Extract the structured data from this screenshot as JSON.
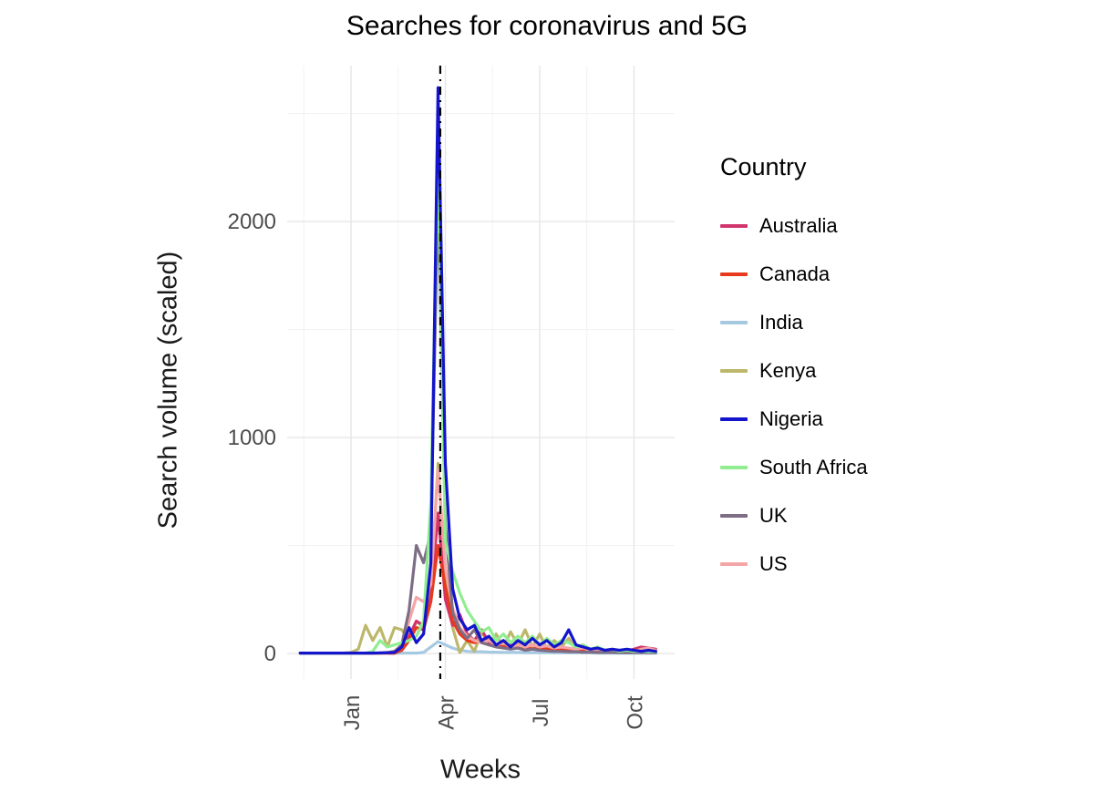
{
  "chart_data": {
    "type": "line",
    "title": "Searches for coronavirus and 5G",
    "xlabel": "Weeks",
    "ylabel": "Search volume (scaled)",
    "legend_title": "Country",
    "legend_position": "right",
    "grid": true,
    "x_unit": "weeks_from_jan_1_2020",
    "xlim": [
      -8.8,
      44.6
    ],
    "ylim": [
      -118,
      2722
    ],
    "x_ticks": [
      {
        "value": 0,
        "label": "Jan"
      },
      {
        "value": 13,
        "label": "Apr"
      },
      {
        "value": 26,
        "label": "Jul"
      },
      {
        "value": 39,
        "label": "Oct"
      }
    ],
    "x_minor_ticks": [
      -6.5,
      6.5,
      19.5,
      32.5
    ],
    "y_ticks": [
      {
        "value": 0,
        "label": "0"
      },
      {
        "value": 1000,
        "label": "1000"
      },
      {
        "value": 2000,
        "label": "2000"
      }
    ],
    "y_minor_ticks": [
      500,
      1500,
      2500
    ],
    "vline": {
      "x": 12.3,
      "style": "dashdot",
      "color": "#000000"
    },
    "x": [
      -7,
      -6,
      -5,
      -4,
      -3,
      -2,
      -1,
      0,
      1,
      2,
      3,
      4,
      5,
      6,
      7,
      8,
      9,
      10,
      11,
      12,
      13,
      14,
      15,
      16,
      17,
      18,
      19,
      20,
      21,
      22,
      23,
      24,
      25,
      26,
      27,
      28,
      29,
      30,
      31,
      32,
      33,
      34,
      35,
      36,
      37,
      38,
      39,
      40,
      41,
      42
    ],
    "series": [
      {
        "name": "Australia",
        "color": "#D0366B",
        "values": [
          2,
          2,
          2,
          2,
          2,
          2,
          2,
          2,
          2,
          2,
          2,
          2,
          2,
          2,
          20,
          80,
          150,
          130,
          260,
          650,
          250,
          130,
          180,
          90,
          60,
          110,
          50,
          40,
          30,
          40,
          25,
          30,
          20,
          30,
          20,
          25,
          15,
          20,
          15,
          20,
          10,
          15,
          10,
          15,
          10,
          10,
          20,
          30,
          25,
          20
        ]
      },
      {
        "name": "Canada",
        "color": "#E8391D",
        "values": [
          2,
          2,
          2,
          2,
          2,
          2,
          2,
          2,
          2,
          2,
          2,
          2,
          2,
          2,
          15,
          60,
          120,
          110,
          240,
          500,
          310,
          150,
          90,
          60,
          50,
          60,
          40,
          35,
          30,
          35,
          25,
          30,
          20,
          25,
          20,
          20,
          15,
          20,
          10,
          15,
          10,
          10,
          10,
          10,
          5,
          10,
          15,
          20,
          15,
          10
        ]
      },
      {
        "name": "India",
        "color": "#A6C9E2",
        "values": [
          2,
          2,
          2,
          2,
          2,
          2,
          2,
          2,
          2,
          2,
          2,
          2,
          2,
          2,
          2,
          2,
          2,
          5,
          30,
          55,
          40,
          25,
          15,
          10,
          8,
          8,
          6,
          6,
          5,
          5,
          5,
          4,
          4,
          4,
          4,
          3,
          3,
          3,
          3,
          3,
          3,
          2,
          2,
          2,
          2,
          2,
          2,
          2,
          2,
          2
        ]
      },
      {
        "name": "Kenya",
        "color": "#BDB76B",
        "values": [
          2,
          2,
          2,
          2,
          2,
          2,
          2,
          5,
          20,
          130,
          60,
          120,
          30,
          120,
          110,
          60,
          150,
          120,
          300,
          880,
          350,
          120,
          5,
          60,
          10,
          100,
          40,
          90,
          30,
          100,
          40,
          110,
          30,
          90,
          20,
          60,
          30,
          70,
          20,
          40,
          10,
          20,
          10,
          15,
          5,
          10,
          5,
          10,
          5,
          5
        ]
      },
      {
        "name": "Nigeria",
        "color": "#1414CC",
        "values": [
          2,
          2,
          2,
          2,
          2,
          2,
          2,
          2,
          2,
          2,
          2,
          3,
          3,
          5,
          30,
          120,
          50,
          90,
          420,
          2620,
          880,
          300,
          160,
          110,
          130,
          60,
          80,
          40,
          60,
          30,
          60,
          40,
          70,
          40,
          60,
          30,
          50,
          110,
          40,
          30,
          20,
          25,
          15,
          20,
          15,
          20,
          15,
          10,
          15,
          10
        ]
      },
      {
        "name": "South Africa",
        "color": "#90EE90",
        "values": [
          2,
          2,
          2,
          2,
          2,
          2,
          2,
          2,
          2,
          2,
          10,
          60,
          30,
          40,
          50,
          60,
          80,
          150,
          700,
          2320,
          520,
          380,
          280,
          200,
          150,
          100,
          120,
          60,
          90,
          50,
          80,
          50,
          80,
          40,
          70,
          40,
          60,
          50,
          30,
          40,
          20,
          30,
          15,
          20,
          10,
          15,
          10,
          10,
          8,
          8
        ]
      },
      {
        "name": "UK",
        "color": "#7D6D85",
        "values": [
          2,
          2,
          2,
          2,
          2,
          2,
          2,
          2,
          2,
          2,
          2,
          2,
          5,
          10,
          40,
          200,
          500,
          420,
          560,
          2130,
          600,
          190,
          110,
          70,
          110,
          50,
          40,
          30,
          25,
          20,
          25,
          15,
          20,
          15,
          12,
          10,
          10,
          8,
          8,
          6,
          6,
          5,
          5,
          5,
          4,
          4,
          4,
          4,
          3,
          3
        ]
      },
      {
        "name": "US",
        "color": "#F4A6A6",
        "values": [
          2,
          2,
          2,
          2,
          2,
          2,
          2,
          2,
          2,
          2,
          2,
          2,
          2,
          10,
          30,
          150,
          260,
          240,
          320,
          850,
          400,
          210,
          120,
          80,
          60,
          50,
          60,
          40,
          50,
          30,
          40,
          30,
          40,
          30,
          35,
          25,
          30,
          25,
          20,
          25,
          15,
          20,
          15,
          15,
          10,
          15,
          10,
          20,
          25,
          15
        ]
      }
    ]
  }
}
